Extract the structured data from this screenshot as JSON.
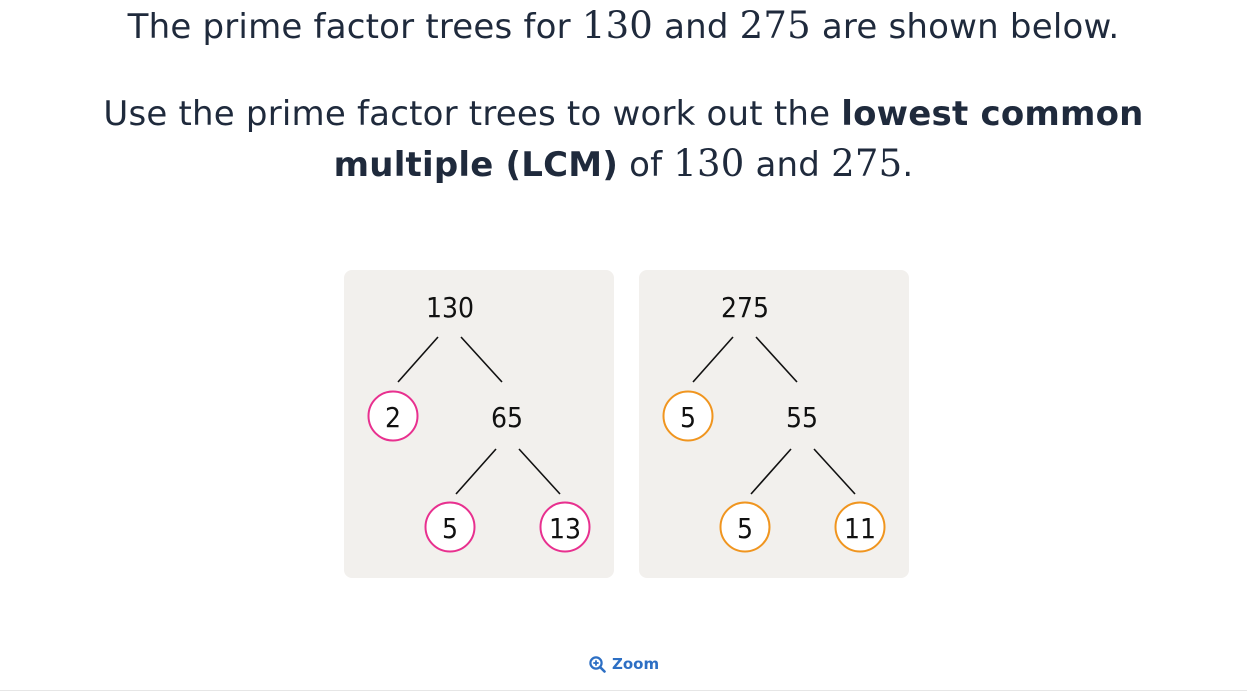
{
  "question": {
    "line1": {
      "before": "The prime factor trees for ",
      "n1": "130",
      "mid": " and ",
      "n2": "275",
      "after": " are shown below."
    },
    "line2": {
      "before": "Use the prime factor trees to work out the ",
      "bold": "lowest common"
    },
    "line3": {
      "bold": "multiple (LCM)",
      "mid1": " of ",
      "n1": "130",
      "mid2": " and ",
      "n2": "275",
      "after": "."
    }
  },
  "tree_a": {
    "root": "130",
    "left_leaf": "2",
    "branch": "65",
    "leaf_left": "5",
    "leaf_right": "13",
    "circle_color": "#e8308f"
  },
  "tree_b": {
    "root": "275",
    "left_leaf": "5",
    "branch": "55",
    "leaf_left": "5",
    "leaf_right": "11",
    "circle_color": "#f0951f"
  },
  "zoom": {
    "label": "Zoom",
    "icon": "zoom-in-icon"
  }
}
